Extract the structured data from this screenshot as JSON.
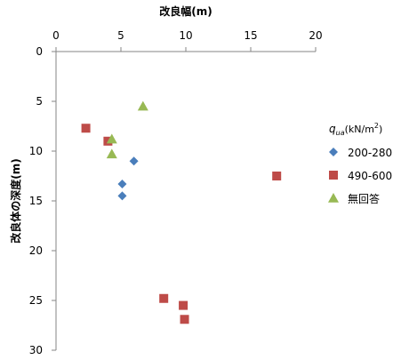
{
  "chart_data": {
    "type": "scatter",
    "title": "",
    "xlabel": "改良幅(m)",
    "ylabel": "改良体の深度(m)",
    "xlim": [
      0,
      20
    ],
    "ylim": [
      0,
      30
    ],
    "y_inverted": true,
    "x_axis_position": "top",
    "x_ticks": [
      0,
      5,
      10,
      15,
      20
    ],
    "y_ticks": [
      0,
      5,
      10,
      15,
      20,
      25,
      30
    ],
    "grid": false,
    "legend_position": "right",
    "legend_title_prefix": "q",
    "legend_title_subscript": "ua",
    "legend_title_units": "(kN/m",
    "legend_title_superscript": "2",
    "legend_title_close": ")",
    "series": [
      {
        "name": "200-280",
        "marker": "diamond",
        "color": "#4a7ebb",
        "points": [
          {
            "x": 6.0,
            "y": 11.0
          },
          {
            "x": 5.1,
            "y": 13.3
          },
          {
            "x": 5.1,
            "y": 14.5
          }
        ]
      },
      {
        "name": "490-600",
        "marker": "square",
        "color": "#be4b48",
        "points": [
          {
            "x": 2.3,
            "y": 7.7
          },
          {
            "x": 4.0,
            "y": 9.0
          },
          {
            "x": 17.0,
            "y": 12.5
          },
          {
            "x": 8.3,
            "y": 24.8
          },
          {
            "x": 9.8,
            "y": 25.5
          },
          {
            "x": 9.9,
            "y": 26.9
          }
        ]
      },
      {
        "name": "無回答",
        "marker": "triangle",
        "color": "#98b954",
        "points": [
          {
            "x": 6.7,
            "y": 5.5
          },
          {
            "x": 4.3,
            "y": 8.8
          },
          {
            "x": 4.3,
            "y": 10.3
          }
        ]
      }
    ]
  }
}
